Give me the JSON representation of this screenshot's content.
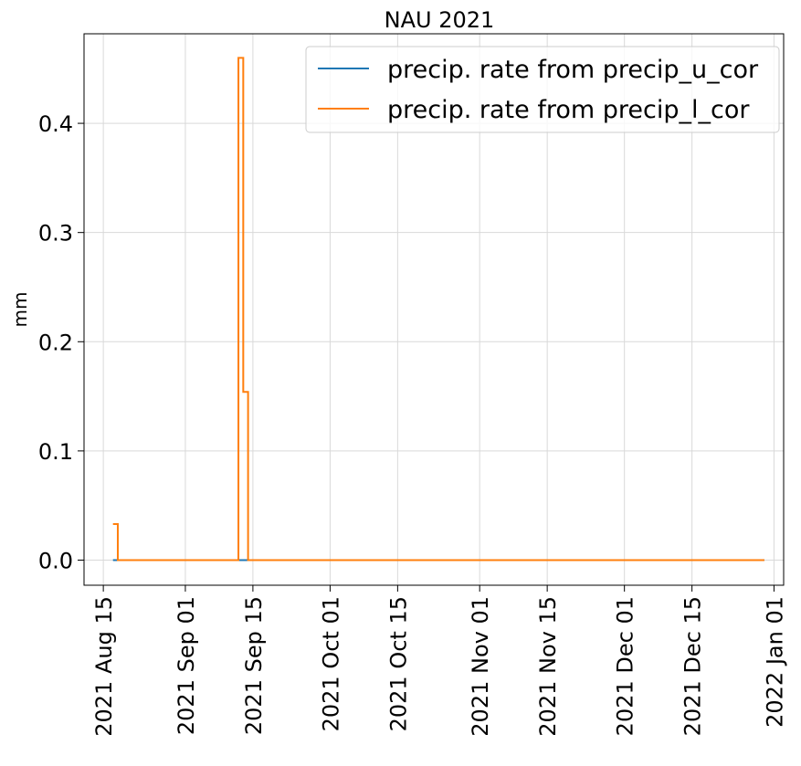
{
  "chart_data": {
    "type": "line",
    "title": "NAU 2021",
    "xlabel": "",
    "ylabel": "mm",
    "x_axis_type": "date",
    "xlim": [
      "2021-08-11",
      "2022-01-03"
    ],
    "ylim": [
      -0.023,
      0.482
    ],
    "grid": true,
    "legend_placement": "top-right",
    "x_ticks": [
      "2021-08-15",
      "2021-09-01",
      "2021-09-15",
      "2021-10-01",
      "2021-10-15",
      "2021-11-01",
      "2021-11-15",
      "2021-12-01",
      "2021-12-15",
      "2022-01-01"
    ],
    "x_tick_labels": [
      "2021 Aug 15",
      "2021 Sep 01",
      "2021 Sep 15",
      "2021 Oct 01",
      "2021 Oct 15",
      "2021 Nov 01",
      "2021 Nov 15",
      "2021 Dec 01",
      "2021 Dec 15",
      "2022 Jan 01"
    ],
    "y_ticks": [
      0.0,
      0.1,
      0.2,
      0.3,
      0.4
    ],
    "y_tick_labels": [
      "0.0",
      "0.1",
      "0.2",
      "0.3",
      "0.4"
    ],
    "series": [
      {
        "name": "precip. rate from precip_u_cor",
        "color": "#1f77b4",
        "step": "post",
        "x": [
          "2021-08-17",
          "2021-08-18",
          "2021-09-12",
          "2021-09-13",
          "2021-09-14",
          "2021-12-30"
        ],
        "y": [
          0.0,
          0.0,
          0.0,
          0.0,
          0.0,
          0.0
        ]
      },
      {
        "name": "precip. rate from precip_l_cor",
        "color": "#ff7f0e",
        "step": "post",
        "x": [
          "2021-08-17",
          "2021-08-18",
          "2021-09-12",
          "2021-09-13",
          "2021-09-14",
          "2021-12-30"
        ],
        "y": [
          0.033,
          0.0,
          0.46,
          0.154,
          0.0,
          0.0
        ]
      }
    ]
  }
}
